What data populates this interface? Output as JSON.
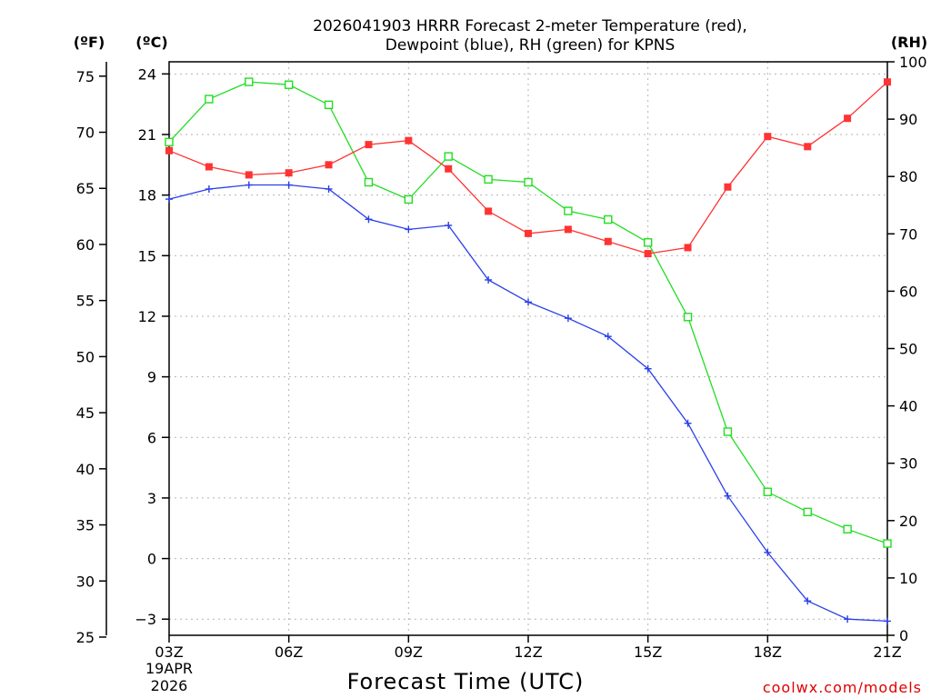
{
  "chart_data": {
    "type": "line",
    "title_line1": "2026041903 HRRR Forecast 2-meter Temperature (red),",
    "title_line2": "Dewpoint (blue), RH (green) for KPNS",
    "xlabel": "Forecast Time (UTC)",
    "date_line1": "19APR",
    "date_line2": "2026",
    "credit": "coolwx.com/models",
    "unit_f": "(ºF)",
    "unit_c": "(ºC)",
    "unit_rh": "(RH)",
    "hours": [
      3,
      4,
      5,
      6,
      7,
      8,
      9,
      10,
      11,
      12,
      13,
      14,
      15,
      16,
      17,
      18,
      19,
      20,
      21
    ],
    "x_ticks": [
      {
        "hour": 3,
        "label": "03Z"
      },
      {
        "hour": 6,
        "label": "06Z"
      },
      {
        "hour": 9,
        "label": "09Z"
      },
      {
        "hour": 12,
        "label": "12Z"
      },
      {
        "hour": 15,
        "label": "15Z"
      },
      {
        "hour": 18,
        "label": "18Z"
      },
      {
        "hour": 21,
        "label": "21Z"
      }
    ],
    "celsius_ticks": [
      24,
      21,
      18,
      15,
      12,
      9,
      6,
      3,
      0,
      -3
    ],
    "celsius_tick_labels": [
      "24",
      "21",
      "18",
      "15",
      "12",
      "9",
      "6",
      "3",
      "0",
      "−3"
    ],
    "fahrenheit_ticks": [
      75,
      70,
      65,
      60,
      55,
      50,
      45,
      40,
      35,
      30,
      25
    ],
    "rh_ticks": [
      100,
      90,
      80,
      70,
      60,
      50,
      40,
      30,
      20,
      10,
      0
    ],
    "ylim_celsius": [
      -3.8,
      24.6
    ],
    "ylim_rh": [
      0,
      100
    ],
    "series": [
      {
        "name": "Temperature",
        "unit": "C",
        "color": "#ff3333",
        "marker": "filled-square",
        "values": [
          20.2,
          19.4,
          19.0,
          19.1,
          19.5,
          20.5,
          20.7,
          19.3,
          17.2,
          16.1,
          16.3,
          15.7,
          15.1,
          15.4,
          18.4,
          20.9,
          20.4,
          21.8,
          23.6
        ]
      },
      {
        "name": "Dewpoint",
        "unit": "C",
        "color": "#2a3fe8",
        "marker": "plus",
        "values": [
          17.8,
          18.3,
          18.5,
          18.5,
          18.3,
          16.8,
          16.3,
          16.5,
          13.8,
          12.7,
          11.9,
          11.0,
          9.4,
          6.7,
          3.1,
          0.3,
          -2.1,
          -3.0,
          -3.1
        ]
      },
      {
        "name": "RH",
        "unit": "%",
        "color": "#22dd22",
        "marker": "open-square",
        "values": [
          86,
          93.5,
          96.5,
          96,
          92.5,
          79,
          76,
          83.5,
          79.5,
          79,
          74,
          72.5,
          68.5,
          55.5,
          35.5,
          25,
          21.5,
          18.5,
          16
        ]
      }
    ]
  }
}
